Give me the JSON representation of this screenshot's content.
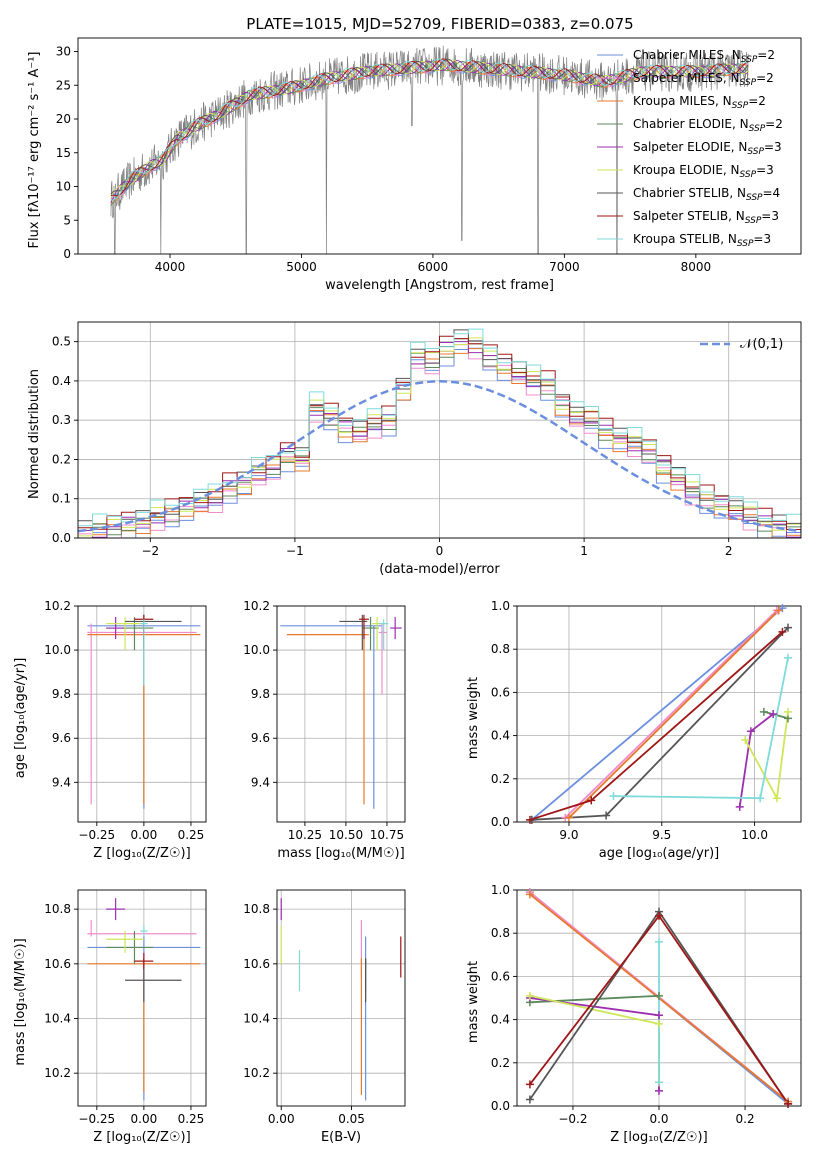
{
  "title": "PLATE=1015, MJD=52709, FIBERID=0383, z=0.075",
  "colors": {
    "chabrier_miles": "#6b8fdf",
    "salpeter_miles": "#f08ccd",
    "kroupa_miles": "#e8792a",
    "chabrier_elodie": "#5c8a5c",
    "salpeter_elodie": "#9b2fb0",
    "kroupa_elodie": "#cfe659",
    "chabrier_stelib": "#555555",
    "salpeter_stelib": "#a01616",
    "kroupa_stelib": "#7fdada",
    "data": "#808080",
    "grid": "#b0b0b0",
    "normal": "#6b8fdf"
  },
  "models": [
    {
      "key": "chabrier_miles",
      "name": "Chabrier MILES",
      "nssp": "2"
    },
    {
      "key": "salpeter_miles",
      "name": "Salpeter MILES",
      "nssp": "2"
    },
    {
      "key": "kroupa_miles",
      "name": "Kroupa MILES",
      "nssp": "2"
    },
    {
      "key": "chabrier_elodie",
      "name": "Chabrier ELODIE",
      "nssp": "2"
    },
    {
      "key": "salpeter_elodie",
      "name": "Salpeter ELODIE",
      "nssp": "3"
    },
    {
      "key": "kroupa_elodie",
      "name": "Kroupa ELODIE",
      "nssp": "3"
    },
    {
      "key": "chabrier_stelib",
      "name": "Chabrier STELIB",
      "nssp": "4"
    },
    {
      "key": "salpeter_stelib",
      "name": "Salpeter STELIB",
      "nssp": "3"
    },
    {
      "key": "kroupa_stelib",
      "name": "Kroupa STELIB",
      "nssp": "3"
    }
  ],
  "chart_data": [
    {
      "id": "spectrum",
      "type": "line",
      "xlabel": "wavelength [Angstrom, rest frame]",
      "ylabel": "Flux [fλ10⁻¹⁷ erg cm⁻² s⁻¹ A⁻¹]",
      "xlim": [
        3300,
        8800
      ],
      "ylim": [
        0,
        32
      ],
      "xticks": [
        4000,
        5000,
        6000,
        7000,
        8000
      ],
      "yticks": [
        0,
        5,
        10,
        15,
        20,
        25,
        30
      ],
      "continuum_points": [
        [
          3550,
          8
        ],
        [
          3700,
          11
        ],
        [
          3850,
          13
        ],
        [
          3950,
          14
        ],
        [
          4050,
          17
        ],
        [
          4200,
          19
        ],
        [
          4400,
          21
        ],
        [
          4600,
          23.5
        ],
        [
          4900,
          24.5
        ],
        [
          5200,
          26
        ],
        [
          5500,
          27
        ],
        [
          5800,
          27.5
        ],
        [
          6100,
          28
        ],
        [
          6400,
          27.5
        ],
        [
          6700,
          27
        ],
        [
          7000,
          26.5
        ],
        [
          7300,
          25.5
        ],
        [
          7600,
          27
        ],
        [
          8000,
          27
        ],
        [
          8400,
          27.5
        ]
      ],
      "spectrum_range": [
        3550,
        8400
      ],
      "absorption_lines": [
        [
          3580,
          0
        ],
        [
          3930,
          0
        ],
        [
          4580,
          0
        ],
        [
          5190,
          0
        ],
        [
          5840,
          19
        ],
        [
          6220,
          2
        ],
        [
          6800,
          0
        ],
        [
          7400,
          0
        ]
      ]
    },
    {
      "id": "residuals",
      "type": "histogram",
      "xlabel": "(data-model)/error",
      "ylabel": "Normed distribution",
      "xlim": [
        -2.5,
        2.5
      ],
      "ylim": [
        0,
        0.55
      ],
      "xticks": [
        -2,
        -1,
        0,
        1,
        2
      ],
      "yticks": [
        0.0,
        0.1,
        0.2,
        0.3,
        0.4,
        0.5
      ],
      "bin_edges_start": -2.5,
      "bin_width": 0.1,
      "base_heights": [
        0.015,
        0.02,
        0.028,
        0.035,
        0.04,
        0.055,
        0.065,
        0.08,
        0.09,
        0.1,
        0.13,
        0.14,
        0.165,
        0.18,
        0.21,
        0.2,
        0.33,
        0.31,
        0.28,
        0.27,
        0.29,
        0.3,
        0.38,
        0.46,
        0.45,
        0.48,
        0.5,
        0.49,
        0.46,
        0.44,
        0.42,
        0.4,
        0.39,
        0.34,
        0.31,
        0.3,
        0.27,
        0.25,
        0.24,
        0.22,
        0.18,
        0.15,
        0.12,
        0.1,
        0.085,
        0.07,
        0.055,
        0.04,
        0.03,
        0.02
      ],
      "normal_label": "𝒩(0,1)"
    },
    {
      "id": "age_vs_Z",
      "type": "scatter",
      "xlabel": "Z [log₁₀(Z/Z☉)]",
      "ylabel": "age  [log₁₀(age/yr)]",
      "xlim": [
        -0.35,
        0.33
      ],
      "ylim": [
        9.22,
        10.2
      ],
      "xticks": [
        -0.25,
        0.0,
        0.25
      ],
      "yticks": [
        9.4,
        9.6,
        9.8,
        10.0,
        10.2
      ],
      "points": [
        {
          "m": "chabrier_miles",
          "x": 0.0,
          "y": 10.11,
          "xe": [
            -0.3,
            0.3
          ],
          "ye": [
            9.28,
            10.11
          ]
        },
        {
          "m": "salpeter_miles",
          "x": -0.28,
          "y": 10.08,
          "xe": [
            -0.3,
            0.28
          ],
          "ye": [
            9.3,
            10.12
          ]
        },
        {
          "m": "kroupa_miles",
          "x": 0.0,
          "y": 10.07,
          "xe": [
            -0.3,
            0.3
          ],
          "ye": [
            9.3,
            10.07
          ]
        },
        {
          "m": "chabrier_elodie",
          "x": -0.05,
          "y": 10.1,
          "xe": [
            -0.2,
            0.05
          ],
          "ye": [
            10.0,
            10.15
          ]
        },
        {
          "m": "salpeter_elodie",
          "x": -0.15,
          "y": 10.1,
          "xe": [
            -0.2,
            -0.1
          ],
          "ye": [
            10.05,
            10.15
          ]
        },
        {
          "m": "kroupa_elodie",
          "x": -0.1,
          "y": 10.12,
          "xe": [
            -0.2,
            0.0
          ],
          "ye": [
            10.0,
            10.15
          ]
        },
        {
          "m": "chabrier_stelib",
          "x": 0.0,
          "y": 10.13,
          "xe": [
            -0.1,
            0.2
          ],
          "ye": [
            10.0,
            10.16
          ]
        },
        {
          "m": "salpeter_stelib",
          "x": 0.0,
          "y": 10.14,
          "xe": [
            -0.05,
            0.05
          ],
          "ye": [
            10.05,
            10.16
          ]
        },
        {
          "m": "kroupa_stelib",
          "x": 0.0,
          "y": 10.12,
          "xe": [
            -0.02,
            0.02
          ],
          "ye": [
            9.84,
            10.14
          ]
        }
      ]
    },
    {
      "id": "age_vs_mass",
      "type": "scatter",
      "xlabel": "mass [log₁₀(M/M☉)]",
      "ylabel": "",
      "xlim": [
        10.08,
        10.86
      ],
      "ylim": [
        9.22,
        10.2
      ],
      "xticks": [
        10.25,
        10.5,
        10.75
      ],
      "yticks": [
        9.4,
        9.6,
        9.8,
        10.0,
        10.2
      ],
      "points": [
        {
          "m": "chabrier_miles",
          "x": 10.67,
          "y": 10.11,
          "xe": [
            10.1,
            10.72
          ],
          "ye": [
            9.28,
            10.11
          ]
        },
        {
          "m": "salpeter_miles",
          "x": 10.72,
          "y": 10.08,
          "xe": [
            10.7,
            10.75
          ],
          "ye": [
            9.8,
            10.12
          ]
        },
        {
          "m": "kroupa_miles",
          "x": 10.61,
          "y": 10.07,
          "xe": [
            10.14,
            10.64
          ],
          "ye": [
            9.3,
            10.07
          ]
        },
        {
          "m": "chabrier_elodie",
          "x": 10.65,
          "y": 10.1,
          "xe": [
            10.6,
            10.7
          ],
          "ye": [
            10.0,
            10.15
          ]
        },
        {
          "m": "salpeter_elodie",
          "x": 10.8,
          "y": 10.1,
          "xe": [
            10.77,
            10.84
          ],
          "ye": [
            10.05,
            10.15
          ]
        },
        {
          "m": "kroupa_elodie",
          "x": 10.69,
          "y": 10.12,
          "xe": [
            10.66,
            10.74
          ],
          "ye": [
            10.0,
            10.15
          ]
        },
        {
          "m": "chabrier_stelib",
          "x": 10.6,
          "y": 10.13,
          "xe": [
            10.46,
            10.63
          ],
          "ye": [
            10.0,
            10.16
          ]
        },
        {
          "m": "salpeter_stelib",
          "x": 10.61,
          "y": 10.14,
          "xe": [
            10.58,
            10.64
          ],
          "ye": [
            10.05,
            10.16
          ]
        },
        {
          "m": "kroupa_stelib",
          "x": 10.73,
          "y": 10.12,
          "xe": [
            10.7,
            10.76
          ],
          "ye": [
            10.0,
            10.14
          ]
        }
      ]
    },
    {
      "id": "massweight_vs_age",
      "type": "line",
      "xlabel": "age  [log₁₀(age/yr)]",
      "ylabel": "mass weight",
      "xlim": [
        8.72,
        10.25
      ],
      "ylim": [
        0,
        1.0
      ],
      "xticks": [
        9.0,
        9.5,
        10.0
      ],
      "yticks": [
        0.0,
        0.2,
        0.4,
        0.6,
        0.8,
        1.0
      ],
      "series": [
        {
          "m": "chabrier_miles",
          "pts": [
            [
              8.8,
              0.01
            ],
            [
              10.15,
              0.99
            ]
          ]
        },
        {
          "m": "salpeter_miles",
          "pts": [
            [
              8.98,
              0.02
            ],
            [
              10.12,
              0.98
            ]
          ]
        },
        {
          "m": "kroupa_miles",
          "pts": [
            [
              9.0,
              0.02
            ],
            [
              10.13,
              0.98
            ]
          ]
        },
        {
          "m": "chabrier_elodie",
          "pts": [
            [
              10.05,
              0.51
            ],
            [
              10.18,
              0.48
            ]
          ]
        },
        {
          "m": "salpeter_elodie",
          "pts": [
            [
              9.92,
              0.07
            ],
            [
              9.98,
              0.42
            ],
            [
              10.1,
              0.5
            ]
          ]
        },
        {
          "m": "kroupa_elodie",
          "pts": [
            [
              9.95,
              0.38
            ],
            [
              10.12,
              0.11
            ],
            [
              10.18,
              0.51
            ]
          ]
        },
        {
          "m": "chabrier_stelib",
          "pts": [
            [
              8.8,
              0.01
            ],
            [
              9.2,
              0.03
            ],
            [
              10.18,
              0.9
            ]
          ]
        },
        {
          "m": "salpeter_stelib",
          "pts": [
            [
              8.79,
              0.01
            ],
            [
              9.12,
              0.1
            ],
            [
              10.15,
              0.88
            ]
          ]
        },
        {
          "m": "kroupa_stelib",
          "pts": [
            [
              9.24,
              0.12
            ],
            [
              10.03,
              0.11
            ],
            [
              10.18,
              0.76
            ]
          ]
        }
      ]
    },
    {
      "id": "mass_vs_Z",
      "type": "scatter",
      "xlabel": "Z [log₁₀(Z/Z☉)]",
      "ylabel": "mass [log₁₀(M/M☉)]",
      "xlim": [
        -0.35,
        0.33
      ],
      "ylim": [
        10.08,
        10.87
      ],
      "xticks": [
        -0.25,
        0.0,
        0.25
      ],
      "yticks": [
        10.2,
        10.4,
        10.6,
        10.8
      ],
      "points": [
        {
          "m": "chabrier_miles",
          "x": 0.0,
          "y": 10.66,
          "xe": [
            -0.3,
            0.3
          ],
          "ye": [
            10.1,
            10.7
          ]
        },
        {
          "m": "salpeter_miles",
          "x": -0.28,
          "y": 10.71,
          "xe": [
            -0.3,
            0.28
          ],
          "ye": [
            10.7,
            10.76
          ]
        },
        {
          "m": "kroupa_miles",
          "x": 0.0,
          "y": 10.6,
          "xe": [
            -0.3,
            0.3
          ],
          "ye": [
            10.13,
            10.62
          ]
        },
        {
          "m": "chabrier_elodie",
          "x": -0.05,
          "y": 10.66,
          "xe": [
            -0.2,
            0.05
          ],
          "ye": [
            10.6,
            10.72
          ]
        },
        {
          "m": "salpeter_elodie",
          "x": -0.15,
          "y": 10.8,
          "xe": [
            -0.2,
            -0.1
          ],
          "ye": [
            10.76,
            10.84
          ]
        },
        {
          "m": "kroupa_elodie",
          "x": -0.1,
          "y": 10.69,
          "xe": [
            -0.2,
            0.0
          ],
          "ye": [
            10.64,
            10.72
          ]
        },
        {
          "m": "chabrier_stelib",
          "x": 0.0,
          "y": 10.54,
          "xe": [
            -0.1,
            0.2
          ],
          "ye": [
            10.46,
            10.62
          ]
        },
        {
          "m": "salpeter_stelib",
          "x": 0.0,
          "y": 10.61,
          "xe": [
            -0.05,
            0.05
          ],
          "ye": [
            10.58,
            10.64
          ]
        },
        {
          "m": "kroupa_stelib",
          "x": 0.0,
          "y": 10.72,
          "xe": [
            -0.02,
            0.02
          ],
          "ye": [
            10.7,
            10.74
          ]
        }
      ]
    },
    {
      "id": "mass_vs_ebv",
      "type": "errorbar",
      "xlabel": "E(B-V)",
      "ylabel": "",
      "xlim": [
        -0.003,
        0.088
      ],
      "ylim": [
        10.08,
        10.87
      ],
      "xticks": [
        0.0,
        0.05
      ],
      "yticks": [
        10.2,
        10.4,
        10.6,
        10.8
      ],
      "points": [
        {
          "m": "chabrier_miles",
          "x": 0.06,
          "ye": [
            10.1,
            10.7
          ]
        },
        {
          "m": "salpeter_miles",
          "x": 0.057,
          "ye": [
            10.55,
            10.76
          ]
        },
        {
          "m": "kroupa_miles",
          "x": 0.057,
          "ye": [
            10.12,
            10.62
          ]
        },
        {
          "m": "chabrier_elodie",
          "x": 0.06,
          "ye": [
            10.5,
            10.62
          ]
        },
        {
          "m": "salpeter_elodie",
          "x": 0.0,
          "ye": [
            10.76,
            10.84
          ]
        },
        {
          "m": "kroupa_elodie",
          "x": 0.0,
          "ye": [
            10.6,
            10.74
          ]
        },
        {
          "m": "chabrier_stelib",
          "x": 0.06,
          "ye": [
            10.46,
            10.62
          ]
        },
        {
          "m": "salpeter_stelib",
          "x": 0.085,
          "ye": [
            10.55,
            10.7
          ]
        },
        {
          "m": "kroupa_stelib",
          "x": 0.013,
          "ye": [
            10.5,
            10.65
          ]
        }
      ]
    },
    {
      "id": "massweight_vs_Z",
      "type": "line",
      "xlabel": "Z [log₁₀(Z/Z☉)]",
      "ylabel": "mass weight",
      "xlim": [
        -0.33,
        0.33
      ],
      "ylim": [
        0,
        1.0
      ],
      "xticks": [
        -0.2,
        0.0,
        0.2
      ],
      "yticks": [
        0.0,
        0.2,
        0.4,
        0.6,
        0.8,
        1.0
      ],
      "series": [
        {
          "m": "chabrier_miles",
          "pts": [
            [
              -0.3,
              0.99
            ],
            [
              0.3,
              0.01
            ]
          ]
        },
        {
          "m": "salpeter_miles",
          "pts": [
            [
              -0.3,
              0.99
            ],
            [
              0.3,
              0.02
            ]
          ]
        },
        {
          "m": "kroupa_miles",
          "pts": [
            [
              -0.3,
              0.98
            ],
            [
              0.3,
              0.02
            ]
          ]
        },
        {
          "m": "chabrier_elodie",
          "pts": [
            [
              -0.3,
              0.48
            ],
            [
              0.0,
              0.51
            ]
          ]
        },
        {
          "m": "salpeter_elodie",
          "pts": [
            [
              -0.3,
              0.5
            ],
            [
              0.0,
              0.42
            ],
            [
              0.0,
              0.07
            ]
          ]
        },
        {
          "m": "kroupa_elodie",
          "pts": [
            [
              -0.3,
              0.51
            ],
            [
              0.0,
              0.38
            ],
            [
              0.0,
              0.11
            ]
          ]
        },
        {
          "m": "chabrier_stelib",
          "pts": [
            [
              -0.3,
              0.03
            ],
            [
              0.0,
              0.9
            ],
            [
              0.3,
              0.01
            ]
          ]
        },
        {
          "m": "salpeter_stelib",
          "pts": [
            [
              -0.3,
              0.1
            ],
            [
              0.0,
              0.88
            ],
            [
              0.3,
              0.01
            ]
          ]
        },
        {
          "m": "kroupa_stelib",
          "pts": [
            [
              0.0,
              0.76
            ],
            [
              0.0,
              0.11
            ]
          ]
        }
      ]
    }
  ]
}
